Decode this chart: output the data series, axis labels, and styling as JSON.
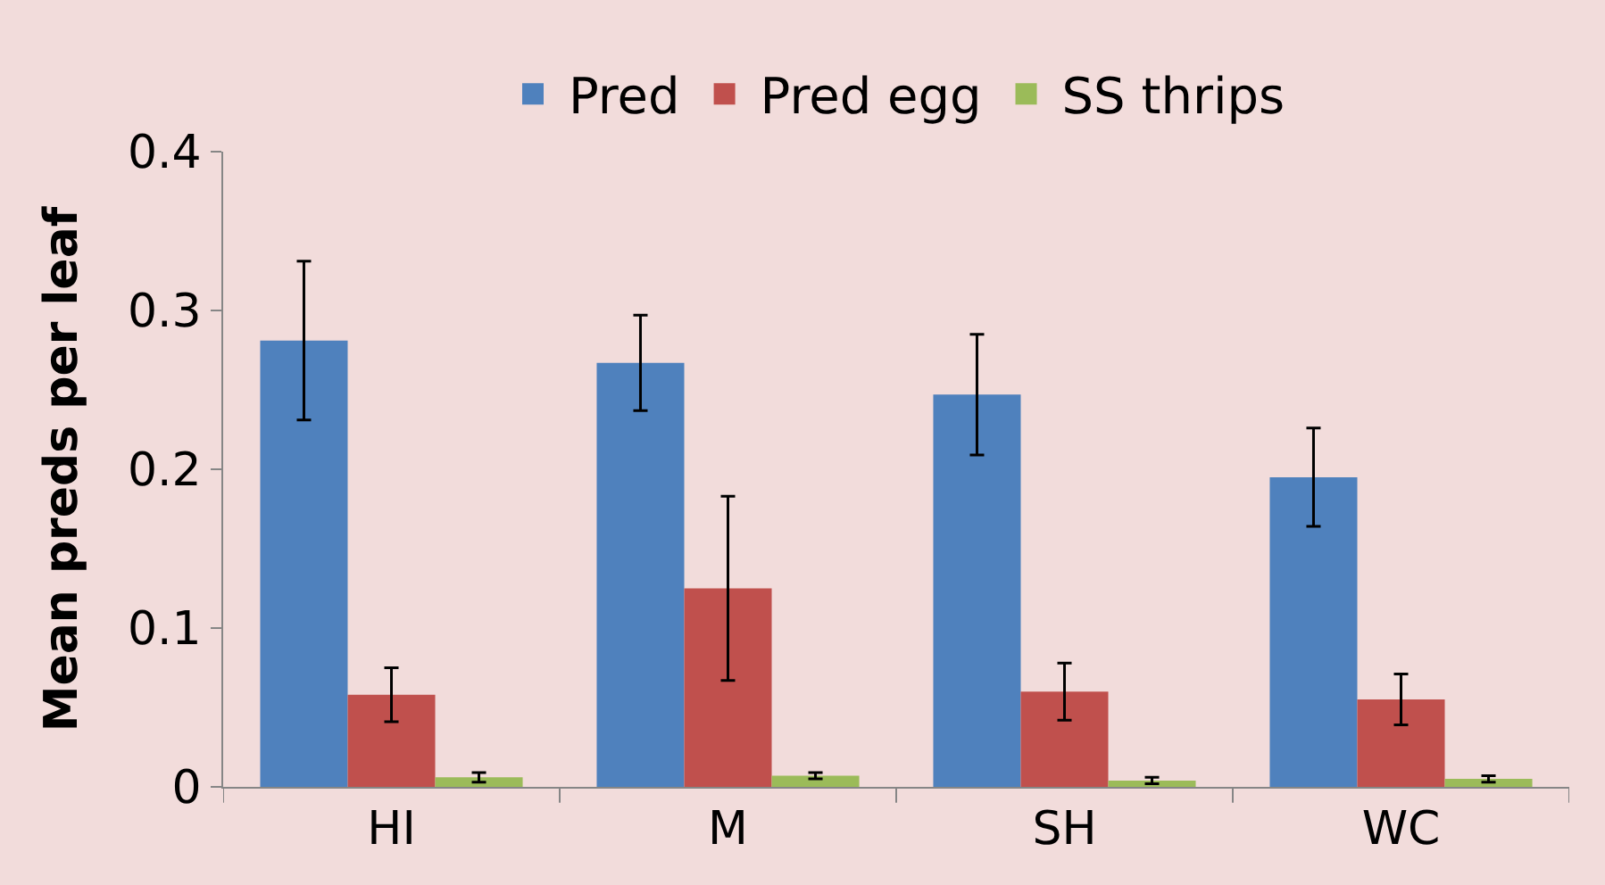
{
  "chart_data": {
    "type": "bar",
    "ylabel": "Mean preds per leaf",
    "categories": [
      "HI",
      "M",
      "SH",
      "WC"
    ],
    "series": [
      {
        "name": "Pred",
        "color": "#4f81bd",
        "values": [
          0.281,
          0.267,
          0.247,
          0.195
        ],
        "errors": [
          0.05,
          0.03,
          0.038,
          0.031
        ]
      },
      {
        "name": "Pred egg",
        "color": "#c0504d",
        "values": [
          0.058,
          0.125,
          0.06,
          0.055
        ],
        "errors": [
          0.017,
          0.058,
          0.018,
          0.016
        ]
      },
      {
        "name": "SS thrips",
        "color": "#9bbb59",
        "values": [
          0.006,
          0.007,
          0.004,
          0.005
        ],
        "errors": [
          0.003,
          0.002,
          0.002,
          0.002
        ]
      }
    ],
    "ylim": [
      0,
      0.4
    ],
    "yticks": [
      {
        "value": 0,
        "label": "0"
      },
      0.1,
      0.2,
      0.3,
      0.4
    ],
    "grid": false,
    "legend": "top"
  }
}
